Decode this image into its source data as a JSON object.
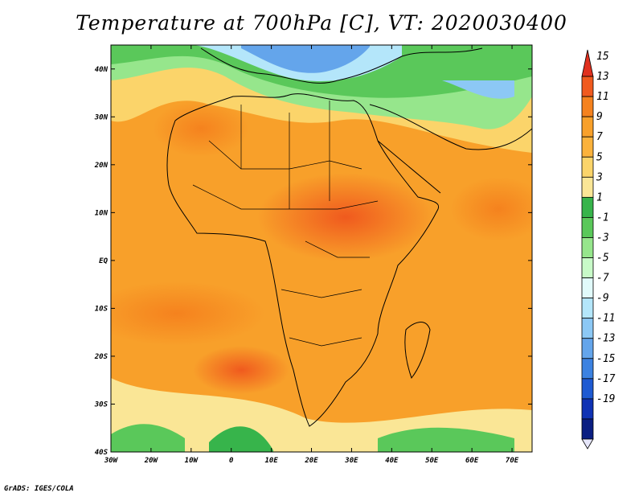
{
  "title": "Temperature at 700hPa [C], VT: 2020030400",
  "credit": "GrADS: IGES/COLA",
  "map": {
    "variable": "Temperature at 700hPa",
    "units": "C",
    "valid_time": "2020030400",
    "lon_range": [
      -30,
      75
    ],
    "lat_range": [
      -40,
      45
    ],
    "lat_ticks": [
      "40N",
      "30N",
      "20N",
      "10N",
      "EQ",
      "10S",
      "20S",
      "30S",
      "40S"
    ],
    "lon_ticks": [
      "30W",
      "20W",
      "10W",
      "0",
      "10E",
      "20E",
      "30E",
      "40E",
      "50E",
      "60E",
      "70E"
    ]
  },
  "colorbar": {
    "labels": [
      "15",
      "13",
      "11",
      "9",
      "7",
      "5",
      "3",
      "1",
      "-1",
      "-3",
      "-5",
      "-7",
      "-9",
      "-11",
      "-13",
      "-15",
      "-17",
      "-19"
    ],
    "colors": [
      "#e0301e",
      "#f05a1e",
      "#f5821e",
      "#f8a02a",
      "#fbb23c",
      "#fbd46a",
      "#fae696",
      "#37b44b",
      "#5ac85a",
      "#96e68c",
      "#c8fac8",
      "#e1fafa",
      "#b4e6fa",
      "#8cc8f5",
      "#64a5eb",
      "#3c82e1",
      "#1e5ad2",
      "#0f32b4",
      "#0a1e82"
    ]
  }
}
